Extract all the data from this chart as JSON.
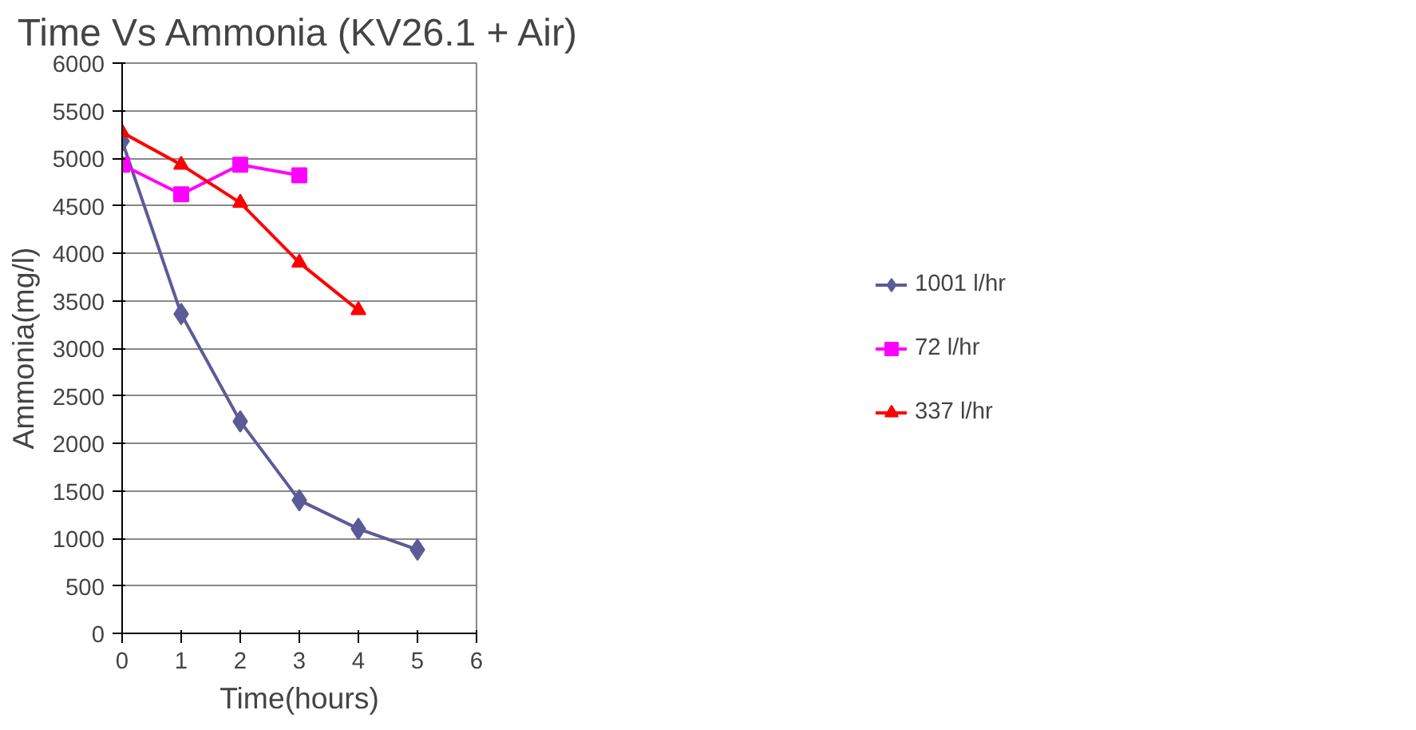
{
  "chart_data": {
    "type": "line",
    "title": "Time Vs Ammonia (KV26.1 + Air)",
    "xlabel": "Time(hours)",
    "ylabel": "Ammonia(mg/l)",
    "xlim": [
      0,
      6
    ],
    "xticks": [
      0,
      1,
      2,
      3,
      4,
      5,
      6
    ],
    "ylim": [
      0,
      6000
    ],
    "yticks": [
      0,
      500,
      1000,
      1500,
      2000,
      2500,
      3000,
      3500,
      4000,
      4500,
      5000,
      5500,
      6000
    ],
    "grid": "y",
    "legend": "right",
    "series": [
      {
        "name": "1001 l/hr",
        "color": "#5b5b99",
        "marker": "diamond",
        "x": [
          0,
          1,
          2,
          3,
          4,
          5
        ],
        "values": [
          5180,
          3360,
          2230,
          1400,
          1100,
          880
        ]
      },
      {
        "name": "72 l/hr",
        "color": "#ff00ff",
        "marker": "square",
        "x": [
          0,
          1,
          2,
          3
        ],
        "values": [
          4930,
          4620,
          4930,
          4820
        ]
      },
      {
        "name": "337 l/hr",
        "color": "#ff0000",
        "marker": "triangle",
        "x": [
          0,
          1,
          2,
          3,
          4
        ],
        "values": [
          5270,
          4930,
          4530,
          3900,
          3400
        ]
      }
    ]
  }
}
